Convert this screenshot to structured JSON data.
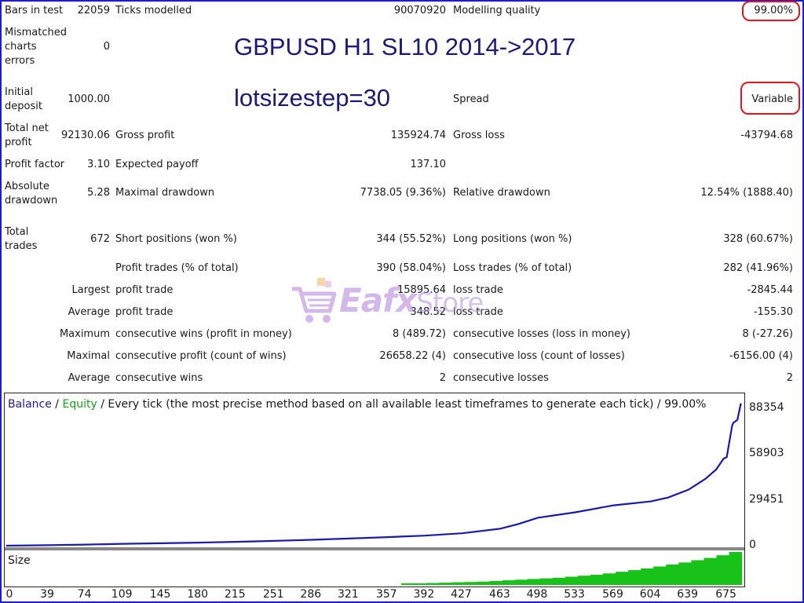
{
  "stats": {
    "bars_in_test_label": "Bars in test",
    "bars_in_test_value": "22059",
    "ticks_modelled_label": "Ticks modelled",
    "ticks_modelled_value": "90070920",
    "modelling_quality_label": "Modelling quality",
    "modelling_quality_value": "99.00%",
    "mismatched_label": "Mismatched charts errors",
    "mismatched_value": "0",
    "initial_deposit_label": "Initial deposit",
    "initial_deposit_value": "1000.00",
    "spread_label": "Spread",
    "spread_value": "Variable",
    "total_net_profit_label": "Total net profit",
    "total_net_profit_value": "92130.06",
    "gross_profit_label": "Gross profit",
    "gross_profit_value": "135924.74",
    "gross_loss_label": "Gross loss",
    "gross_loss_value": "-43794.68",
    "profit_factor_label": "Profit factor",
    "profit_factor_value": "3.10",
    "expected_payoff_label": "Expected payoff",
    "expected_payoff_value": "137.10",
    "absolute_drawdown_label": "Absolute drawdown",
    "absolute_drawdown_value": "5.28",
    "maximal_drawdown_label": "Maximal drawdown",
    "maximal_drawdown_value": "7738.05 (9.36%)",
    "relative_drawdown_label": "Relative drawdown",
    "relative_drawdown_value": "12.54% (1888.40)",
    "total_trades_label": "Total trades",
    "total_trades_value": "672",
    "short_positions_label": "Short positions (won %)",
    "short_positions_value": "344 (55.52%)",
    "long_positions_label": "Long positions (won %)",
    "long_positions_value": "328 (60.67%)",
    "profit_trades_label": "Profit trades (% of total)",
    "profit_trades_value": "390 (58.04%)",
    "loss_trades_label": "Loss trades (% of total)",
    "loss_trades_value": "282 (41.96%)",
    "largest_label": "Largest",
    "largest_profit_label": "profit trade",
    "largest_profit_value": "15895.64",
    "largest_loss_label": "loss trade",
    "largest_loss_value": "-2845.44",
    "average_label": "Average",
    "average_profit_label": "profit trade",
    "average_profit_value": "348.52",
    "average_loss_label": "loss trade",
    "average_loss_value": "-155.30",
    "maximum_label": "Maximum",
    "max_cons_wins_label": "consecutive wins (profit in money)",
    "max_cons_wins_value": "8 (489.72)",
    "max_cons_losses_label": "consecutive losses (loss in money)",
    "max_cons_losses_value": "8 (-27.26)",
    "maximal_label": "Maximal",
    "maximal_cons_profit_label": "consecutive profit (count of wins)",
    "maximal_cons_profit_value": "26658.22 (4)",
    "maximal_cons_loss_label": "consecutive loss (count of losses)",
    "maximal_cons_loss_value": "-6156.00 (4)",
    "average2_label": "Average",
    "avg_cons_wins_label": "consecutive wins",
    "avg_cons_wins_value": "2",
    "avg_cons_losses_label": "consecutive losses",
    "avg_cons_losses_value": "2"
  },
  "overlay": {
    "title": "GBPUSD H1 SL10 2014->2017",
    "subtitle": "lotsizestep=30"
  },
  "watermark": {
    "brand_main": "Eafx",
    "brand_suffix": "Store"
  },
  "chart_legend": {
    "balance": "Balance",
    "slash1": " / ",
    "equity": "Equity",
    "rest": " / Every tick (the most precise method based on all available least timeframes to generate each tick) / 99.00%"
  },
  "size_label": "Size",
  "colors": {
    "balance": "#1a1aa8",
    "equity": "#18a018",
    "size_bars": "#19c219",
    "highlight": "#e0171e",
    "frame": "#1f1bd0"
  },
  "chart_data": {
    "type": "line",
    "xlim": [
      0,
      690
    ],
    "ylim": [
      0,
      95000
    ],
    "y_ticks": [
      "0",
      "29451",
      "58903",
      "88354"
    ],
    "y_tick_values": [
      0,
      29451,
      58903,
      88354
    ],
    "x_ticks": [
      "0",
      "39",
      "74",
      "109",
      "145",
      "180",
      "215",
      "251",
      "286",
      "321",
      "357",
      "392",
      "427",
      "463",
      "498",
      "533",
      "569",
      "604",
      "639",
      "675"
    ],
    "x_tick_values": [
      0,
      39,
      74,
      109,
      145,
      180,
      215,
      251,
      286,
      321,
      357,
      392,
      427,
      463,
      498,
      533,
      569,
      604,
      639,
      675
    ],
    "series": [
      {
        "name": "Balance",
        "x": [
          0,
          39,
          74,
          109,
          145,
          180,
          215,
          251,
          286,
          321,
          357,
          392,
          427,
          463,
          480,
          498,
          533,
          569,
          604,
          620,
          639,
          655,
          665,
          670,
          672,
          675,
          680,
          681,
          685,
          688,
          689
        ],
        "values": [
          1000,
          1300,
          1700,
          2200,
          2600,
          3000,
          3500,
          4100,
          4800,
          5600,
          6500,
          7500,
          9000,
          12000,
          15000,
          19000,
          22500,
          27000,
          29500,
          32000,
          37000,
          44000,
          50000,
          55000,
          57000,
          58000,
          78000,
          80000,
          82000,
          92000,
          92130
        ]
      },
      {
        "name": "Equity",
        "x": [
          0,
          689
        ],
        "values": [
          1000,
          92130
        ]
      }
    ],
    "size_panel": {
      "label": "Size",
      "x_start": 370,
      "x_end": 689,
      "levels_relative": [
        0.05,
        0.05,
        0.06,
        0.07,
        0.08,
        0.09,
        0.1,
        0.12,
        0.14,
        0.16,
        0.18,
        0.2,
        0.22,
        0.25,
        0.28,
        0.31,
        0.35,
        0.4,
        0.45,
        0.5,
        0.56,
        0.62,
        0.68,
        0.75,
        0.82,
        0.9,
        1.0
      ]
    },
    "grid": false
  }
}
